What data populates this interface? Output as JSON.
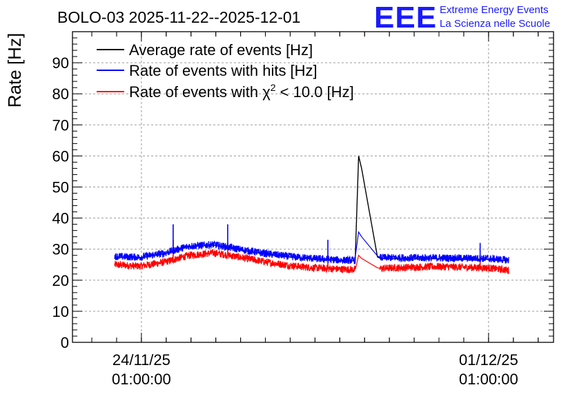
{
  "header": {
    "title": "BOLO-03 2025-11-22--2025-12-01",
    "logo_text": "EEE",
    "logo_line1": "Extreme Energy Events",
    "logo_line2": "La Scienza nelle Scuole"
  },
  "colors": {
    "average": "#000000",
    "hits": "#0000ff",
    "chi2": "#ff0000",
    "logo": "#1a1aff"
  },
  "chart_data": {
    "type": "line",
    "title": "BOLO-03 2025-11-22--2025-12-01",
    "xlabel": "",
    "ylabel": "Rate [Hz]",
    "x_unit": "days since 2025-11-22 00:00",
    "xlim": [
      0.65,
      10.35
    ],
    "ylim": [
      0,
      100
    ],
    "grid": true,
    "legend_position": "top-left",
    "yticks": [
      "0",
      "10",
      "20",
      "30",
      "40",
      "50",
      "60",
      "70",
      "80",
      "90"
    ],
    "ytick_values": [
      0,
      10,
      20,
      30,
      40,
      50,
      60,
      70,
      80,
      90
    ],
    "xticks": [
      {
        "x": 2.04,
        "line1": "24/11/25",
        "line2": "01:00:00"
      },
      {
        "x": 9.04,
        "line1": "01/12/25",
        "line2": "01:00:00"
      }
    ],
    "series": [
      {
        "name": "Average rate of events [Hz]",
        "label_prefix": "Average rate of events [Hz]",
        "label_suffix": "",
        "color": "#000000",
        "band": false,
        "x": [
          1.5,
          2.0,
          2.5,
          3.0,
          3.5,
          4.0,
          4.5,
          5.0,
          5.5,
          6.0,
          6.35,
          6.42,
          6.48,
          6.8,
          6.86,
          7.5,
          8.0,
          8.5,
          9.0,
          9.45
        ],
        "values": [
          27.5,
          27.2,
          28.5,
          30.8,
          31.3,
          29.8,
          28.5,
          27.5,
          26.8,
          26.3,
          26.2,
          60.0,
          56.0,
          27.5,
          27.0,
          26.8,
          26.9,
          26.8,
          26.7,
          26.2
        ]
      },
      {
        "name": "Rate of events with hits [Hz]",
        "label_prefix": "Rate of events with hits [Hz]",
        "label_suffix": "",
        "color": "#0000ff",
        "band": true,
        "noise": 1.2,
        "x": [
          1.5,
          2.0,
          2.5,
          3.0,
          3.5,
          4.0,
          4.5,
          5.0,
          5.5,
          6.0,
          6.35,
          6.42,
          6.48,
          6.8,
          6.86,
          7.5,
          8.0,
          8.5,
          9.0,
          9.45
        ],
        "values": [
          27.7,
          27.4,
          28.7,
          31.0,
          31.5,
          30.0,
          28.7,
          27.7,
          27.0,
          26.5,
          26.4,
          35.5,
          34.0,
          27.8,
          27.3,
          27.2,
          27.2,
          27.1,
          27.0,
          26.5
        ]
      },
      {
        "name": "Rate of events with chi2 < 10.0 [Hz]",
        "label_prefix": "Rate of events with χ",
        "label_sup": "2",
        "label_suffix": " < 10.0 [Hz]",
        "color": "#ff0000",
        "band": true,
        "noise": 1.2,
        "x": [
          1.5,
          2.0,
          2.5,
          3.0,
          3.5,
          4.0,
          4.5,
          5.0,
          5.5,
          6.0,
          6.35,
          6.42,
          6.48,
          6.8,
          6.86,
          7.5,
          8.0,
          8.5,
          9.0,
          9.45
        ],
        "values": [
          25.0,
          24.5,
          25.8,
          28.0,
          28.8,
          27.5,
          26.0,
          24.8,
          24.0,
          23.6,
          23.4,
          28.0,
          27.0,
          24.0,
          23.8,
          24.2,
          24.4,
          24.2,
          24.0,
          23.2
        ]
      }
    ],
    "spikes": [
      {
        "x": 2.68,
        "hits": 38.0,
        "chi2": 33.0
      },
      {
        "x": 3.78,
        "hits": 38.0,
        "chi2": 32.0
      },
      {
        "x": 5.8,
        "hits": 33.0,
        "chi2": 28.0
      },
      {
        "x": 8.87,
        "hits": 32.0,
        "chi2": 27.5
      }
    ]
  }
}
